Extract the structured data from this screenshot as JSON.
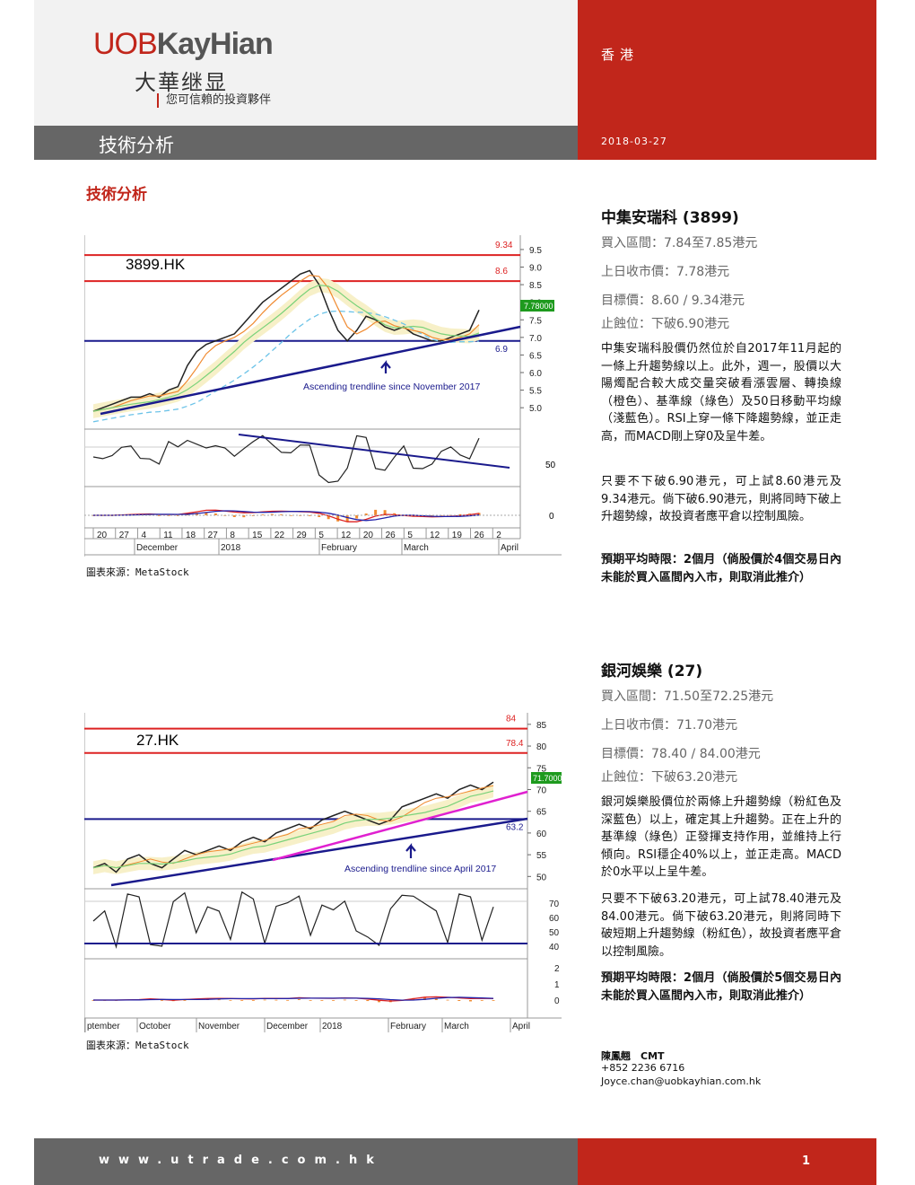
{
  "header": {
    "brand_uob": "UOB",
    "brand_kayhian": "KayHian",
    "brand_cn": "大華继显",
    "tagline": "您可信賴的投資夥伴",
    "region": "香港",
    "date": "2018-03-27",
    "bar_title": "技術分析"
  },
  "section_title": "技術分析",
  "stocks": [
    {
      "name": "中集安瑞科 (3899)",
      "buy_range": "買入區間：7.84至7.85港元",
      "prev_close": "上日收市價：7.78港元",
      "target": "目標價：8.60 / 9.34港元",
      "stop_loss": "止蝕位：下破6.90港元",
      "para1": "中集安瑞科股價仍然位於自2017年11月起的一條上升趨勢線以上。此外，週一，股價以大陽燭配合較大成交量突破看漲雲層、轉換線（橙色）、基準線（綠色）及50日移動平均線（淺藍色）。RSI上穿一條下降趨勢線，並正走高，而MACD剛上穿0及呈牛差。",
      "para2": "只要不下破6.90港元，可上試8.60港元及9.34港元。倘下破6.90港元，則將同時下破上升趨勢線，故投資者應平倉以控制風險。",
      "period": "預期平均時限：2個月（倘股價於4個交易日內未能於買入區間內入市，則取消此推介）"
    },
    {
      "name": "銀河娛樂 (27)",
      "buy_range": "買入區間：71.50至72.25港元",
      "prev_close": "上日收市價：71.70港元",
      "target": "目標價：78.40 / 84.00港元",
      "stop_loss": "止蝕位：下破63.20港元",
      "para1": "銀河娛樂股價位於兩條上升趨勢線（粉紅色及深藍色）以上，確定其上升趨勢。正在上升的基準線（綠色）正發揮支持作用，並維持上行傾向。RSI穩企40%以上，並正走高。MACD於0水平以上呈牛差。",
      "para2": "只要不下破63.20港元，可上試78.40港元及84.00港元。倘下破63.20港元，則將同時下破短期上升趨勢線（粉紅色），故投資者應平倉以控制風險。",
      "period": "預期平均時限：2個月（倘股價於5個交易日內未能於買入區間內入市，則取消此推介）"
    }
  ],
  "chart_source": "圖表來源：MetaStock",
  "analyst": {
    "name": "陳鳳翹　CMT",
    "phone": "+852 2236 6716",
    "email": "Joyce.chan@uobkayhian.com.hk"
  },
  "footer": {
    "url": "www.utrade.com.hk",
    "page": "1"
  },
  "chart_data": [
    {
      "type": "line",
      "title": "3899.HK",
      "price_ticks": [
        "9.5",
        "9.0",
        "8.5",
        "8.0",
        "7.5",
        "7.0",
        "6.5",
        "6.0",
        "5.5",
        "5.0"
      ],
      "ylim": [
        4.8,
        9.6
      ],
      "level_labels": [
        "9.34",
        "8.6",
        "6.9"
      ],
      "last_price_label": "7.78000",
      "annotation": "Ascending trendline since November 2017",
      "rsi_tick": "50",
      "macd_tick": "0",
      "date_ticks": [
        "20",
        "27",
        "4",
        "11",
        "18",
        "27",
        "8",
        "15",
        "22",
        "29",
        "5",
        "12",
        "20",
        "26",
        "5",
        "12",
        "19",
        "26",
        "2"
      ],
      "month_labels": [
        "December",
        "2018",
        "February",
        "March",
        "April"
      ],
      "close": [
        4.9,
        5.0,
        5.1,
        5.2,
        5.3,
        5.3,
        5.4,
        5.3,
        5.5,
        5.6,
        6.2,
        6.6,
        6.8,
        6.9,
        7.0,
        7.1,
        7.4,
        7.7,
        8.0,
        8.2,
        8.4,
        8.6,
        8.8,
        8.9,
        8.5,
        7.8,
        7.2,
        6.9,
        7.2,
        7.6,
        7.5,
        7.3,
        7.2,
        7.3,
        7.1,
        7.0,
        6.9,
        6.9,
        7.0,
        7.1,
        7.2,
        7.78
      ],
      "levels": [
        9.34,
        8.6,
        6.9
      ]
    },
    {
      "type": "line",
      "title": "27.HK",
      "price_ticks": [
        "85",
        "80",
        "75",
        "70",
        "65",
        "60",
        "55",
        "50"
      ],
      "ylim": [
        48,
        86
      ],
      "level_labels": [
        "84",
        "78.4",
        "63.2"
      ],
      "last_price_label": "71.7000",
      "annotation": "Ascending trendline since April 2017",
      "rsi_ticks": [
        "70",
        "60",
        "50",
        "40"
      ],
      "macd_ticks": [
        "2",
        "1",
        "0"
      ],
      "month_labels": [
        "ptember",
        "October",
        "November",
        "December",
        "2018",
        "February",
        "March",
        "April"
      ],
      "close": [
        52,
        53,
        51,
        54,
        55,
        53,
        52,
        54,
        56,
        55,
        56,
        57,
        56,
        58,
        59,
        58,
        60,
        61,
        62,
        61,
        63,
        64,
        65,
        64,
        63,
        62,
        63,
        66,
        67,
        68,
        69,
        68,
        70,
        71,
        70,
        71.7
      ],
      "levels": [
        84,
        78.4,
        63.2
      ]
    }
  ]
}
